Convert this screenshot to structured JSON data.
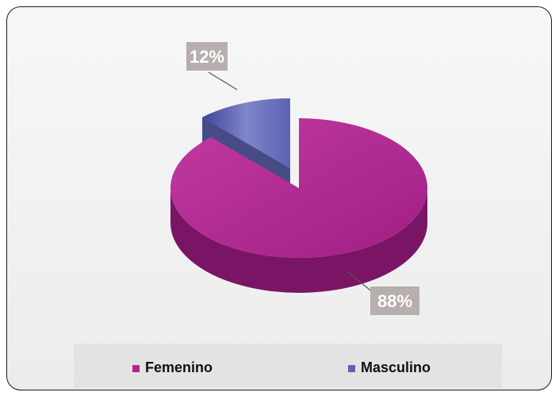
{
  "chart_data": {
    "type": "pie",
    "categories": [
      "Femenino",
      "Masculino"
    ],
    "values": [
      88,
      12
    ],
    "labels": [
      "88%",
      "12%"
    ],
    "colors": [
      "#b0278f",
      "#5b62b4"
    ],
    "dark_colors": [
      "#7a1566",
      "#34397a"
    ],
    "legend_placement": "bottom",
    "exploded": "Masculino",
    "three_d": true
  }
}
